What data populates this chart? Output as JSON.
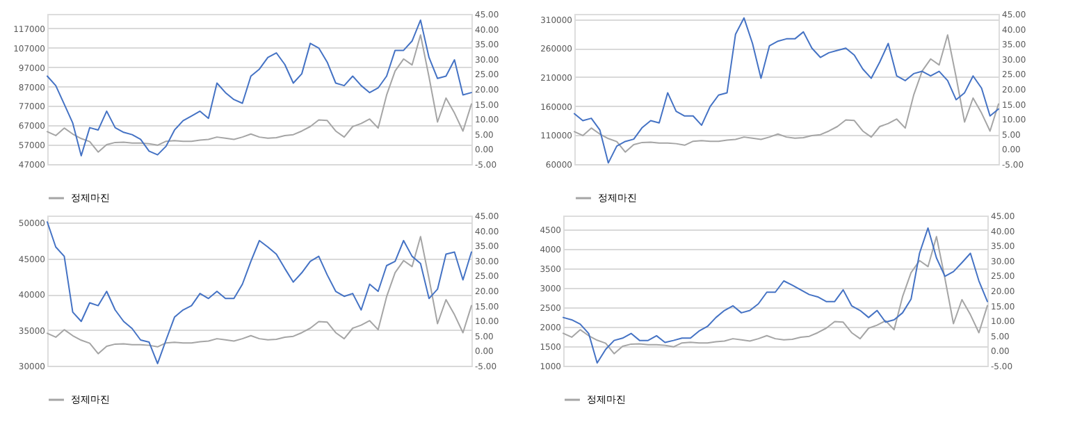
{
  "chart_data": [
    {
      "type": "line",
      "legend": "bottom",
      "grid": "y",
      "categories": [
        null,
        null,
        null,
        null,
        null,
        null,
        null,
        null,
        null,
        null,
        null,
        null,
        null,
        null,
        null,
        null,
        null,
        null,
        null,
        null,
        null,
        null,
        null,
        null,
        null,
        null,
        null,
        null,
        null,
        null,
        null,
        null,
        null,
        null,
        null,
        null,
        null,
        null,
        null,
        null,
        null,
        null,
        null,
        null,
        null,
        null,
        null,
        null,
        null,
        null,
        null
      ],
      "ylim": [
        47000,
        124500
      ],
      "yticks": [
        47000,
        57000,
        67000,
        77000,
        87000,
        97000,
        107000,
        117000
      ],
      "y2lim": [
        -5,
        45
      ],
      "y2ticks": [
        {
          "value": -5,
          "label": "-5.00"
        },
        {
          "value": 0,
          "label": "0.00"
        },
        {
          "value": 5,
          "label": "5.00"
        },
        {
          "value": 10,
          "label": "10.00"
        },
        {
          "value": 15,
          "label": "15.00"
        },
        {
          "value": 20,
          "label": "20.00"
        },
        {
          "value": 25,
          "label": "25.00"
        },
        {
          "value": 30,
          "label": "30.00"
        },
        {
          "value": 35,
          "label": "35.00"
        },
        {
          "value": 40,
          "label": "40.00"
        },
        {
          "value": 45,
          "label": "45.00"
        }
      ],
      "series": [
        {
          "color": "#4472c4",
          "values": [
            92400,
            87500,
            77900,
            68200,
            51300,
            65800,
            64600,
            74300,
            65800,
            63400,
            62200,
            59800,
            53700,
            51800,
            56200,
            64600,
            69400,
            71800,
            74300,
            70600,
            88800,
            83900,
            80300,
            78400,
            92400,
            96000,
            102000,
            104400,
            98400,
            88800,
            93600,
            109300,
            106900,
            99600,
            88800,
            87500,
            92400,
            87500,
            83900,
            86300,
            92400,
            105700,
            105700,
            110500,
            121300,
            102000,
            91200,
            92400,
            100800,
            82700,
            83900
          ]
        },
        {
          "name": "정제마진",
          "axis": "y2",
          "color": "#a5a5a5",
          "values": [
            5.8,
            4.5,
            7.0,
            5.0,
            3.5,
            2.5,
            -1.0,
            1.5,
            2.2,
            2.3,
            2.0,
            2.0,
            1.8,
            1.3,
            2.6,
            2.8,
            2.6,
            2.6,
            3.0,
            3.2,
            4.0,
            3.6,
            3.2,
            4.0,
            5.0,
            4.0,
            3.6,
            3.8,
            4.5,
            4.8,
            6.0,
            7.5,
            9.7,
            9.5,
            6.0,
            4.0,
            7.5,
            8.5,
            10.0,
            7.0,
            18.0,
            26.0,
            30.0,
            28.0,
            38.0,
            24.0,
            9.0,
            17.0,
            12.0,
            6.0,
            15.0
          ]
        }
      ]
    },
    {
      "type": "line",
      "legend": "bottom",
      "grid": "y",
      "categories": [
        null,
        null,
        null,
        null,
        null,
        null,
        null,
        null,
        null,
        null,
        null,
        null,
        null,
        null,
        null,
        null,
        null,
        null,
        null,
        null,
        null,
        null,
        null,
        null,
        null,
        null,
        null,
        null,
        null,
        null,
        null,
        null,
        null,
        null,
        null,
        null,
        null,
        null,
        null,
        null,
        null,
        null,
        null,
        null,
        null,
        null,
        null,
        null,
        null,
        null,
        null
      ],
      "ylim": [
        60000,
        319000
      ],
      "yticks": [
        60000,
        110000,
        160000,
        210000,
        260000,
        310000
      ],
      "y2lim": [
        -5,
        45
      ],
      "y2ticks": [
        {
          "value": -5,
          "label": "-5.00"
        },
        {
          "value": 0,
          "label": "0.00"
        },
        {
          "value": 5,
          "label": "5.00"
        },
        {
          "value": 10,
          "label": "10.00"
        },
        {
          "value": 15,
          "label": "15.00"
        },
        {
          "value": 20,
          "label": "20.00"
        },
        {
          "value": 25,
          "label": "25.00"
        },
        {
          "value": 30,
          "label": "30.00"
        },
        {
          "value": 35,
          "label": "35.00"
        },
        {
          "value": 40,
          "label": "40.00"
        },
        {
          "value": 45,
          "label": "45.00"
        }
      ],
      "series": [
        {
          "color": "#4472c4",
          "values": [
            147000,
            135000,
            139000,
            119000,
            62000,
            91000,
            99000,
            103000,
            123000,
            135000,
            131000,
            183000,
            151000,
            143000,
            143000,
            127000,
            159000,
            179000,
            183000,
            284000,
            312000,
            268000,
            208000,
            264000,
            272000,
            276000,
            276000,
            288000,
            260000,
            244000,
            252000,
            256000,
            260000,
            248000,
            224000,
            208000,
            236000,
            268000,
            212000,
            204000,
            216000,
            220000,
            212000,
            220000,
            204000,
            171000,
            183000,
            212000,
            191000,
            143000,
            155000
          ]
        },
        {
          "name": "정제마진",
          "axis": "y2",
          "color": "#a5a5a5",
          "values": [
            5.8,
            4.5,
            7.0,
            5.0,
            3.5,
            2.5,
            -1.0,
            1.5,
            2.2,
            2.3,
            2.0,
            2.0,
            1.8,
            1.3,
            2.6,
            2.8,
            2.6,
            2.6,
            3.0,
            3.2,
            4.0,
            3.6,
            3.2,
            4.0,
            5.0,
            4.0,
            3.6,
            3.8,
            4.5,
            4.8,
            6.0,
            7.5,
            9.7,
            9.5,
            6.0,
            4.0,
            7.5,
            8.5,
            10.0,
            7.0,
            18.0,
            26.0,
            30.0,
            28.0,
            38.0,
            24.0,
            9.0,
            17.0,
            12.0,
            6.0,
            15.0
          ]
        }
      ]
    },
    {
      "type": "line",
      "legend": "bottom",
      "grid": "y",
      "categories": [
        null,
        null,
        null,
        null,
        null,
        null,
        null,
        null,
        null,
        null,
        null,
        null,
        null,
        null,
        null,
        null,
        null,
        null,
        null,
        null,
        null,
        null,
        null,
        null,
        null,
        null,
        null,
        null,
        null,
        null,
        null,
        null,
        null,
        null,
        null,
        null,
        null,
        null,
        null,
        null,
        null,
        null,
        null,
        null,
        null,
        null,
        null,
        null,
        null,
        null,
        null
      ],
      "ylim": [
        30000,
        51000
      ],
      "yticks": [
        30000,
        35000,
        40000,
        45000,
        50000
      ],
      "y2lim": [
        -5,
        45
      ],
      "y2ticks": [
        {
          "value": -5,
          "label": "-5.00"
        },
        {
          "value": 0,
          "label": "0.00"
        },
        {
          "value": 5,
          "label": "5.00"
        },
        {
          "value": 10,
          "label": "10.00"
        },
        {
          "value": 15,
          "label": "15.00"
        },
        {
          "value": 20,
          "label": "20.00"
        },
        {
          "value": 25,
          "label": "25.00"
        },
        {
          "value": 30,
          "label": "30.00"
        },
        {
          "value": 35,
          "label": "35.00"
        },
        {
          "value": 40,
          "label": "40.00"
        },
        {
          "value": 45,
          "label": "45.00"
        }
      ],
      "series": [
        {
          "color": "#4472c4",
          "values": [
            50100,
            46600,
            45300,
            37500,
            36200,
            38800,
            38400,
            40400,
            37800,
            36200,
            35200,
            33600,
            33300,
            30300,
            33600,
            36800,
            37800,
            38400,
            40100,
            39400,
            40400,
            39400,
            39400,
            41400,
            44600,
            47500,
            46600,
            45600,
            43600,
            41700,
            43000,
            44600,
            45300,
            42700,
            40400,
            39700,
            40100,
            37800,
            41400,
            40400,
            44000,
            44600,
            47500,
            45300,
            44300,
            39400,
            40700,
            45600,
            45900,
            42000,
            45900
          ]
        },
        {
          "name": "정제마진",
          "axis": "y2",
          "color": "#a5a5a5",
          "values": [
            5.8,
            4.5,
            7.0,
            5.0,
            3.5,
            2.5,
            -1.0,
            1.5,
            2.2,
            2.3,
            2.0,
            2.0,
            1.8,
            1.3,
            2.6,
            2.8,
            2.6,
            2.6,
            3.0,
            3.2,
            4.0,
            3.6,
            3.2,
            4.0,
            5.0,
            4.0,
            3.6,
            3.8,
            4.5,
            4.8,
            6.0,
            7.5,
            9.7,
            9.5,
            6.0,
            4.0,
            7.5,
            8.5,
            10.0,
            7.0,
            18.0,
            26.0,
            30.0,
            28.0,
            38.0,
            24.0,
            9.0,
            17.0,
            12.0,
            6.0,
            15.0
          ]
        }
      ]
    },
    {
      "type": "line",
      "legend": "bottom",
      "grid": "y",
      "categories": [
        null,
        null,
        null,
        null,
        null,
        null,
        null,
        null,
        null,
        null,
        null,
        null,
        null,
        null,
        null,
        null,
        null,
        null,
        null,
        null,
        null,
        null,
        null,
        null,
        null,
        null,
        null,
        null,
        null,
        null,
        null,
        null,
        null,
        null,
        null,
        null,
        null,
        null,
        null,
        null,
        null,
        null,
        null,
        null,
        null,
        null,
        null,
        null,
        null,
        null,
        null
      ],
      "ylim": [
        1000,
        4860
      ],
      "yticks": [
        1000,
        1500,
        2000,
        2500,
        3000,
        3500,
        4000,
        4500
      ],
      "y2lim": [
        -5,
        45
      ],
      "y2ticks": [
        {
          "value": -5,
          "label": "-5.00"
        },
        {
          "value": 0,
          "label": "0.00"
        },
        {
          "value": 5,
          "label": "5.00"
        },
        {
          "value": 10,
          "label": "10.00"
        },
        {
          "value": 15,
          "label": "15.00"
        },
        {
          "value": 20,
          "label": "20.00"
        },
        {
          "value": 25,
          "label": "25.00"
        },
        {
          "value": 30,
          "label": "30.00"
        },
        {
          "value": 35,
          "label": "35.00"
        },
        {
          "value": 40,
          "label": "40.00"
        },
        {
          "value": 45,
          "label": "45.00"
        }
      ],
      "series": [
        {
          "color": "#4472c4",
          "values": [
            2240,
            2180,
            2070,
            1830,
            1070,
            1420,
            1650,
            1710,
            1830,
            1650,
            1650,
            1770,
            1600,
            1650,
            1710,
            1710,
            1890,
            2010,
            2240,
            2420,
            2540,
            2360,
            2420,
            2590,
            2890,
            2890,
            3180,
            3070,
            2950,
            2830,
            2770,
            2650,
            2650,
            2950,
            2540,
            2420,
            2240,
            2420,
            2120,
            2180,
            2360,
            2710,
            3890,
            4540,
            3770,
            3300,
            3420,
            3650,
            3890,
            3180,
            2650
          ]
        },
        {
          "name": "정제마진",
          "axis": "y2",
          "color": "#a5a5a5",
          "values": [
            5.8,
            4.5,
            7.0,
            5.0,
            3.5,
            2.5,
            -1.0,
            1.5,
            2.2,
            2.3,
            2.0,
            2.0,
            1.8,
            1.3,
            2.6,
            2.8,
            2.6,
            2.6,
            3.0,
            3.2,
            4.0,
            3.6,
            3.2,
            4.0,
            5.0,
            4.0,
            3.6,
            3.8,
            4.5,
            4.8,
            6.0,
            7.5,
            9.7,
            9.5,
            6.0,
            4.0,
            7.5,
            8.5,
            10.0,
            7.0,
            18.0,
            26.0,
            30.0,
            28.0,
            38.0,
            24.0,
            9.0,
            17.0,
            12.0,
            6.0,
            15.0
          ]
        }
      ]
    }
  ]
}
